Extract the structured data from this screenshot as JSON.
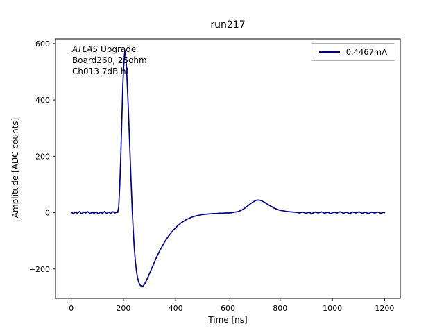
{
  "figure": {
    "annotations": {
      "line1_italic": "ATLAS",
      "line1_rest": " Upgrade",
      "line2": "Board260, 25ohm",
      "line3": "Ch013 7dB hi"
    }
  },
  "chart_data": {
    "type": "line",
    "title": "run217",
    "xlabel": "Time [ns]",
    "ylabel": "Amplitude [ADC counts]",
    "xlim": [
      -60,
      1260
    ],
    "ylim": [
      -304,
      617
    ],
    "xticks": [
      0,
      200,
      400,
      600,
      800,
      1000,
      1200
    ],
    "yticks": [
      -200,
      0,
      200,
      400,
      600
    ],
    "grid": false,
    "background": "#ffffff",
    "legend": {
      "position": "upper right",
      "entries": [
        {
          "label": "0.4467mA",
          "color": "#000080"
        }
      ]
    },
    "annotations": [
      "ATLAS Upgrade",
      "Board260, 25ohm",
      "Ch013 7dB hi"
    ],
    "series": [
      {
        "name": "0.4467mA",
        "color": "#000080",
        "line_width": 1.7,
        "points": [
          [
            0,
            2
          ],
          [
            8,
            -3
          ],
          [
            16,
            1
          ],
          [
            24,
            -2
          ],
          [
            32,
            4
          ],
          [
            40,
            -4
          ],
          [
            48,
            2
          ],
          [
            56,
            -1
          ],
          [
            64,
            3
          ],
          [
            72,
            -3
          ],
          [
            80,
            1
          ],
          [
            88,
            -2
          ],
          [
            96,
            3
          ],
          [
            104,
            -4
          ],
          [
            112,
            2
          ],
          [
            120,
            -2
          ],
          [
            128,
            4
          ],
          [
            136,
            -3
          ],
          [
            144,
            1
          ],
          [
            152,
            -2
          ],
          [
            160,
            3
          ],
          [
            168,
            -1
          ],
          [
            174,
            2
          ],
          [
            178,
            1
          ],
          [
            182,
            20
          ],
          [
            186,
            95
          ],
          [
            190,
            200
          ],
          [
            194,
            330
          ],
          [
            198,
            455
          ],
          [
            201,
            520
          ],
          [
            204,
            560
          ],
          [
            206,
            575
          ],
          [
            208,
            568
          ],
          [
            211,
            530
          ],
          [
            214,
            470
          ],
          [
            218,
            385
          ],
          [
            222,
            290
          ],
          [
            226,
            190
          ],
          [
            230,
            95
          ],
          [
            234,
            5
          ],
          [
            238,
            -70
          ],
          [
            242,
            -130
          ],
          [
            246,
            -175
          ],
          [
            250,
            -207
          ],
          [
            254,
            -230
          ],
          [
            258,
            -245
          ],
          [
            262,
            -254
          ],
          [
            266,
            -259
          ],
          [
            270,
            -262
          ],
          [
            274,
            -261
          ],
          [
            278,
            -257
          ],
          [
            283,
            -250
          ],
          [
            288,
            -241
          ],
          [
            294,
            -229
          ],
          [
            300,
            -216
          ],
          [
            306,
            -203
          ],
          [
            312,
            -190
          ],
          [
            318,
            -177
          ],
          [
            324,
            -164
          ],
          [
            330,
            -152
          ],
          [
            336,
            -141
          ],
          [
            342,
            -130
          ],
          [
            348,
            -120
          ],
          [
            354,
            -110
          ],
          [
            360,
            -101
          ],
          [
            366,
            -92
          ],
          [
            372,
            -84
          ],
          [
            378,
            -77
          ],
          [
            384,
            -70
          ],
          [
            390,
            -63
          ],
          [
            396,
            -57
          ],
          [
            402,
            -52
          ],
          [
            408,
            -46
          ],
          [
            414,
            -42
          ],
          [
            420,
            -37
          ],
          [
            426,
            -33
          ],
          [
            432,
            -30
          ],
          [
            438,
            -26
          ],
          [
            444,
            -23
          ],
          [
            450,
            -21
          ],
          [
            456,
            -18
          ],
          [
            462,
            -16
          ],
          [
            468,
            -14
          ],
          [
            476,
            -12
          ],
          [
            484,
            -10
          ],
          [
            492,
            -9
          ],
          [
            500,
            -7
          ],
          [
            510,
            -6
          ],
          [
            520,
            -5
          ],
          [
            532,
            -4
          ],
          [
            544,
            -3
          ],
          [
            556,
            -3
          ],
          [
            568,
            -2
          ],
          [
            580,
            -2
          ],
          [
            592,
            -1
          ],
          [
            604,
            -1
          ],
          [
            616,
            0
          ],
          [
            628,
            2
          ],
          [
            640,
            4
          ],
          [
            650,
            8
          ],
          [
            660,
            13
          ],
          [
            670,
            20
          ],
          [
            680,
            27
          ],
          [
            690,
            34
          ],
          [
            698,
            39
          ],
          [
            706,
            43
          ],
          [
            714,
            45
          ],
          [
            722,
            44
          ],
          [
            730,
            42
          ],
          [
            738,
            38
          ],
          [
            746,
            33
          ],
          [
            754,
            29
          ],
          [
            762,
            24
          ],
          [
            770,
            20
          ],
          [
            778,
            16
          ],
          [
            786,
            13
          ],
          [
            794,
            10
          ],
          [
            802,
            8
          ],
          [
            814,
            6
          ],
          [
            826,
            4
          ],
          [
            838,
            3
          ],
          [
            850,
            2
          ],
          [
            862,
            1
          ],
          [
            874,
            -1
          ],
          [
            886,
            2
          ],
          [
            898,
            -2
          ],
          [
            910,
            1
          ],
          [
            922,
            -3
          ],
          [
            934,
            2
          ],
          [
            946,
            -1
          ],
          [
            958,
            3
          ],
          [
            970,
            -2
          ],
          [
            982,
            1
          ],
          [
            994,
            -3
          ],
          [
            1006,
            2
          ],
          [
            1018,
            -1
          ],
          [
            1030,
            3
          ],
          [
            1042,
            -2
          ],
          [
            1054,
            1
          ],
          [
            1066,
            -3
          ],
          [
            1078,
            2
          ],
          [
            1090,
            -1
          ],
          [
            1102,
            3
          ],
          [
            1114,
            -2
          ],
          [
            1126,
            1
          ],
          [
            1138,
            -3
          ],
          [
            1150,
            2
          ],
          [
            1162,
            -1
          ],
          [
            1174,
            2
          ],
          [
            1186,
            -2
          ],
          [
            1196,
            1
          ],
          [
            1200,
            0
          ]
        ]
      }
    ]
  }
}
